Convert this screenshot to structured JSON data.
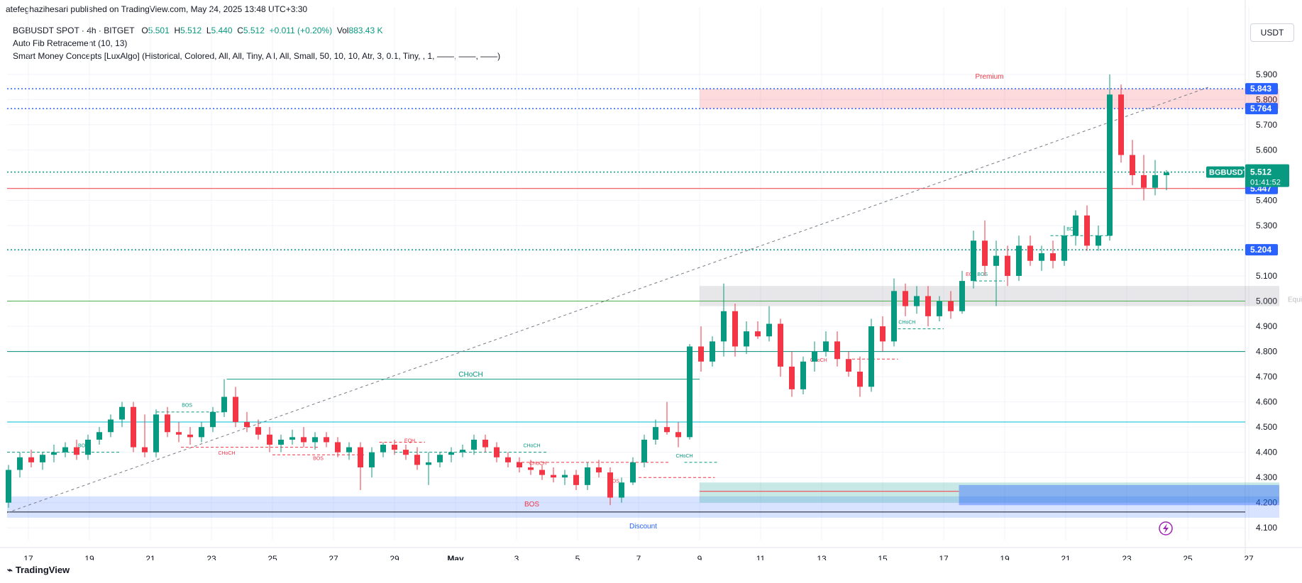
{
  "header": {
    "publisher": "atefeghazihesari published on TradingView.com, May 24, 2025 13:48 UTC+3:30"
  },
  "legend": {
    "symbol": "BGBUSDT SPOT · 4h · BITGET",
    "o_label": "O",
    "o_value": "5.501",
    "h_label": "H",
    "h_value": "5.512",
    "l_label": "L",
    "l_value": "5.440",
    "c_label": "C",
    "c_value": "5.512",
    "change": "+0.011 (+0.20%)",
    "vol_label": "Vol",
    "vol_value": "883.43 K",
    "indicator1": "Auto Fib Retracement (10, 13)",
    "indicator2": "Smart Money Concepts [LuxAlgo] (Historical, Colored, All, All, Tiny, All, All, Small, 50, 10, 10, Atr, 3, 0.1, Tiny, , 1, ——, ——, ——)"
  },
  "currency_button": "USDT",
  "brand": "TradingView",
  "colors": {
    "up": "#089981",
    "down": "#f23645",
    "blue": "#2962ff"
  },
  "chart_data": {
    "type": "candlestick",
    "title": "BGBUSDT SPOT · 4h · BITGET",
    "x_ticks": [
      "17",
      "19",
      "21",
      "23",
      "25",
      "27",
      "29",
      "May",
      "3",
      "5",
      "7",
      "9",
      "11",
      "13",
      "15",
      "17",
      "19",
      "21",
      "23",
      "25",
      "27"
    ],
    "y_ticks": [
      "4.100",
      "4.200",
      "4.300",
      "4.400",
      "4.500",
      "4.600",
      "4.700",
      "4.800",
      "4.900",
      "5.000",
      "5.100",
      "5.200",
      "5.300",
      "5.400",
      "5.600",
      "5.700",
      "5.800",
      "5.900"
    ],
    "ylim": [
      4.05,
      5.97
    ],
    "price_labels": [
      {
        "value": "5.843",
        "color": "#2962ff"
      },
      {
        "value": "5.764",
        "color": "#2962ff"
      },
      {
        "value": "5.447",
        "color": "#2962ff"
      },
      {
        "value": "5.204",
        "color": "#2962ff"
      }
    ],
    "current": {
      "symbol": "BGBUSDT",
      "price": "5.512",
      "countdown": "01:41:52",
      "color": "#089981"
    },
    "horizontal_levels": [
      {
        "price": 5.843,
        "color": "#2962ff",
        "style": "dotted"
      },
      {
        "price": 5.764,
        "color": "#2962ff",
        "style": "dotted"
      },
      {
        "price": 5.512,
        "color": "#089981",
        "style": "dotted"
      },
      {
        "price": 5.447,
        "color": "#f23645",
        "style": "solid"
      },
      {
        "price": 5.204,
        "color": "#089981",
        "style": "dotted"
      },
      {
        "price": 5.0,
        "color": "#4caf50",
        "style": "solid"
      },
      {
        "price": 4.8,
        "color": "#00897b",
        "style": "solid"
      },
      {
        "price": 4.52,
        "color": "#00bcd4",
        "style": "solid"
      },
      {
        "price": 4.163,
        "color": "#131722",
        "style": "solid"
      }
    ],
    "zones": [
      {
        "label": "Premium",
        "x0": 22,
        "x1": 41,
        "y0": 5.764,
        "y1": 5.843,
        "color": "#f23645"
      },
      {
        "label": "Equilibrium",
        "x0": 22,
        "x1": 41,
        "y0": 4.98,
        "y1": 5.06,
        "color": "#787b86"
      },
      {
        "label": "Discount",
        "x0": -1,
        "x1": 41,
        "y0": 4.14,
        "y1": 4.225,
        "color": "#2962ff"
      }
    ],
    "annotations": [
      {
        "text": "BOS",
        "color": "#089981"
      },
      {
        "text": "BOS",
        "color": "#089981"
      },
      {
        "text": "CHoCH",
        "color": "#f23645"
      },
      {
        "text": "CHoCH",
        "color": "#089981"
      },
      {
        "text": "BOS",
        "color": "#f23645"
      },
      {
        "text": "EQH",
        "color": "#f23645"
      },
      {
        "text": "CHoCH",
        "color": "#089981"
      },
      {
        "text": "CHoCH",
        "color": "#f23645"
      },
      {
        "text": "BOS",
        "color": "#f23645"
      },
      {
        "text": "CHoCH",
        "color": "#089981"
      },
      {
        "text": "BOS",
        "color": "#f23645"
      },
      {
        "text": "CHoCH",
        "color": "#f23645"
      },
      {
        "text": "CHoCH",
        "color": "#089981"
      },
      {
        "text": "EQH",
        "color": "#f23645"
      },
      {
        "text": "BOS",
        "color": "#089981"
      },
      {
        "text": "BOS",
        "color": "#089981"
      }
    ],
    "candles": [
      [
        4.2,
        4.35,
        4.18,
        4.33
      ],
      [
        4.33,
        4.4,
        4.3,
        4.38
      ],
      [
        4.38,
        4.41,
        4.34,
        4.36
      ],
      [
        4.36,
        4.4,
        4.33,
        4.39
      ],
      [
        4.39,
        4.43,
        4.36,
        4.4
      ],
      [
        4.4,
        4.44,
        4.38,
        4.42
      ],
      [
        4.42,
        4.45,
        4.37,
        4.39
      ],
      [
        4.39,
        4.47,
        4.37,
        4.45
      ],
      [
        4.45,
        4.5,
        4.43,
        4.48
      ],
      [
        4.48,
        4.55,
        4.46,
        4.53
      ],
      [
        4.53,
        4.6,
        4.5,
        4.58
      ],
      [
        4.58,
        4.6,
        4.4,
        4.42
      ],
      [
        4.42,
        4.55,
        4.38,
        4.4
      ],
      [
        4.4,
        4.57,
        4.38,
        4.55
      ],
      [
        4.55,
        4.58,
        4.46,
        4.48
      ],
      [
        4.48,
        4.52,
        4.44,
        4.47
      ],
      [
        4.47,
        4.5,
        4.43,
        4.46
      ],
      [
        4.46,
        4.52,
        4.44,
        4.5
      ],
      [
        4.5,
        4.58,
        4.48,
        4.56
      ],
      [
        4.56,
        4.69,
        4.54,
        4.62
      ],
      [
        4.62,
        4.66,
        4.5,
        4.52
      ],
      [
        4.52,
        4.56,
        4.48,
        4.5
      ],
      [
        4.5,
        4.53,
        4.45,
        4.47
      ],
      [
        4.47,
        4.5,
        4.4,
        4.43
      ],
      [
        4.43,
        4.47,
        4.4,
        4.45
      ],
      [
        4.45,
        4.49,
        4.43,
        4.46
      ],
      [
        4.46,
        4.5,
        4.42,
        4.44
      ],
      [
        4.44,
        4.48,
        4.41,
        4.46
      ],
      [
        4.46,
        4.48,
        4.42,
        4.44
      ],
      [
        4.44,
        4.46,
        4.38,
        4.4
      ],
      [
        4.4,
        4.44,
        4.37,
        4.42
      ],
      [
        4.42,
        4.44,
        4.25,
        4.34
      ],
      [
        4.34,
        4.42,
        4.3,
        4.4
      ],
      [
        4.4,
        4.44,
        4.38,
        4.43
      ],
      [
        4.43,
        4.45,
        4.39,
        4.41
      ],
      [
        4.41,
        4.43,
        4.37,
        4.39
      ],
      [
        4.39,
        4.42,
        4.33,
        4.35
      ],
      [
        4.35,
        4.4,
        4.27,
        4.36
      ],
      [
        4.36,
        4.4,
        4.34,
        4.39
      ],
      [
        4.39,
        4.42,
        4.36,
        4.4
      ],
      [
        4.4,
        4.43,
        4.38,
        4.41
      ],
      [
        4.41,
        4.47,
        4.39,
        4.45
      ],
      [
        4.45,
        4.47,
        4.4,
        4.42
      ],
      [
        4.42,
        4.44,
        4.36,
        4.38
      ],
      [
        4.38,
        4.4,
        4.34,
        4.36
      ],
      [
        4.36,
        4.38,
        4.32,
        4.34
      ],
      [
        4.34,
        4.37,
        4.31,
        4.33
      ],
      [
        4.33,
        4.35,
        4.29,
        4.31
      ],
      [
        4.31,
        4.34,
        4.28,
        4.3
      ],
      [
        4.3,
        4.33,
        4.27,
        4.31
      ],
      [
        4.31,
        4.33,
        4.25,
        4.27
      ],
      [
        4.27,
        4.36,
        4.25,
        4.34
      ],
      [
        4.34,
        4.37,
        4.3,
        4.32
      ],
      [
        4.32,
        4.34,
        4.19,
        4.22
      ],
      [
        4.22,
        4.3,
        4.2,
        4.28
      ],
      [
        4.28,
        4.38,
        4.27,
        4.36
      ],
      [
        4.36,
        4.47,
        4.34,
        4.45
      ],
      [
        4.45,
        4.53,
        4.43,
        4.5
      ],
      [
        4.5,
        4.6,
        4.47,
        4.48
      ],
      [
        4.48,
        4.52,
        4.42,
        4.46
      ],
      [
        4.46,
        4.83,
        4.45,
        4.82
      ],
      [
        4.82,
        4.9,
        4.72,
        4.76
      ],
      [
        4.76,
        4.86,
        4.74,
        4.84
      ],
      [
        4.84,
        5.07,
        4.78,
        4.96
      ],
      [
        4.96,
        4.99,
        4.78,
        4.82
      ],
      [
        4.82,
        4.92,
        4.79,
        4.88
      ],
      [
        4.88,
        4.92,
        4.85,
        4.86
      ],
      [
        4.86,
        4.98,
        4.84,
        4.91
      ],
      [
        4.91,
        4.93,
        4.7,
        4.74
      ],
      [
        4.74,
        4.8,
        4.62,
        4.65
      ],
      [
        4.65,
        4.78,
        4.63,
        4.76
      ],
      [
        4.76,
        4.84,
        4.72,
        4.8
      ],
      [
        4.8,
        4.88,
        4.78,
        4.84
      ],
      [
        4.84,
        4.88,
        4.74,
        4.77
      ],
      [
        4.77,
        4.8,
        4.7,
        4.72
      ],
      [
        4.72,
        4.78,
        4.62,
        4.66
      ],
      [
        4.66,
        4.93,
        4.64,
        4.9
      ],
      [
        4.9,
        4.94,
        4.8,
        4.84
      ],
      [
        4.84,
        5.09,
        4.82,
        5.04
      ],
      [
        5.04,
        5.07,
        4.94,
        4.98
      ],
      [
        4.98,
        5.06,
        4.95,
        5.02
      ],
      [
        5.02,
        5.06,
        4.9,
        4.94
      ],
      [
        4.94,
        5.02,
        4.92,
        5.0
      ],
      [
        5.0,
        5.04,
        4.93,
        4.96
      ],
      [
        4.96,
        5.12,
        4.95,
        5.08
      ],
      [
        5.08,
        5.28,
        5.05,
        5.24
      ],
      [
        5.24,
        5.32,
        5.1,
        5.14
      ],
      [
        5.14,
        5.24,
        4.98,
        5.18
      ],
      [
        5.18,
        5.22,
        5.06,
        5.1
      ],
      [
        5.1,
        5.26,
        5.08,
        5.22
      ],
      [
        5.22,
        5.26,
        5.14,
        5.16
      ],
      [
        5.16,
        5.22,
        5.12,
        5.19
      ],
      [
        5.19,
        5.24,
        5.13,
        5.16
      ],
      [
        5.16,
        5.3,
        5.14,
        5.26
      ],
      [
        5.26,
        5.36,
        5.22,
        5.34
      ],
      [
        5.34,
        5.38,
        5.2,
        5.22
      ],
      [
        5.22,
        5.3,
        5.2,
        5.26
      ],
      [
        5.26,
        5.9,
        5.24,
        5.82
      ],
      [
        5.82,
        5.86,
        5.55,
        5.58
      ],
      [
        5.58,
        5.64,
        5.46,
        5.5
      ],
      [
        5.5,
        5.58,
        5.4,
        5.45
      ],
      [
        5.45,
        5.56,
        5.42,
        5.5
      ],
      [
        5.5,
        5.52,
        5.44,
        5.51
      ]
    ]
  }
}
